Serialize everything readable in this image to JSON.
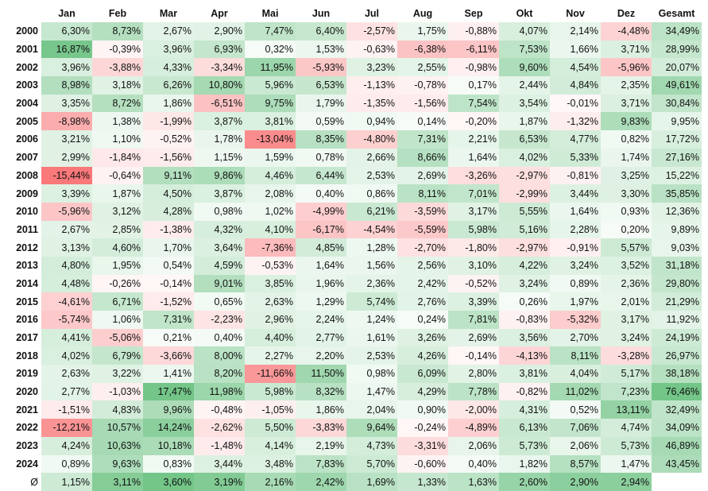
{
  "chart_data": {
    "type": "table",
    "columns": [
      "Jan",
      "Feb",
      "Mar",
      "Apr",
      "Mai",
      "Jun",
      "Jul",
      "Aug",
      "Sep",
      "Okt",
      "Nov",
      "Dez",
      "Gesamt"
    ],
    "rows": [
      {
        "label": "2000",
        "values": [
          "6,30%",
          "8,73%",
          "2,67%",
          "2,90%",
          "7,47%",
          "6,40%",
          "-2,57%",
          "1,75%",
          "-0,88%",
          "4,07%",
          "2,14%",
          "-4,48%",
          "34,49%"
        ]
      },
      {
        "label": "2001",
        "values": [
          "16,87%",
          "-0,39%",
          "3,96%",
          "6,93%",
          "0,32%",
          "1,53%",
          "-0,63%",
          "-6,38%",
          "-6,11%",
          "7,53%",
          "1,66%",
          "3,71%",
          "28,99%"
        ]
      },
      {
        "label": "2002",
        "values": [
          "3,96%",
          "-3,88%",
          "4,33%",
          "-3,34%",
          "11,95%",
          "-5,93%",
          "3,23%",
          "2,55%",
          "-0,98%",
          "9,60%",
          "4,54%",
          "-5,96%",
          "20,07%"
        ]
      },
      {
        "label": "2003",
        "values": [
          "8,98%",
          "3,18%",
          "6,26%",
          "10,80%",
          "5,96%",
          "6,53%",
          "-1,13%",
          "-0,78%",
          "0,17%",
          "2,44%",
          "4,84%",
          "2,35%",
          "49,61%"
        ]
      },
      {
        "label": "2004",
        "values": [
          "3,35%",
          "8,72%",
          "1,86%",
          "-6,51%",
          "9,75%",
          "1,79%",
          "-1,35%",
          "-1,56%",
          "7,54%",
          "3,54%",
          "-0,01%",
          "3,71%",
          "30,84%"
        ]
      },
      {
        "label": "2005",
        "values": [
          "-8,98%",
          "1,38%",
          "-1,99%",
          "3,87%",
          "3,81%",
          "0,59%",
          "0,94%",
          "0,14%",
          "-0,20%",
          "1,87%",
          "-1,32%",
          "9,83%",
          "9,95%"
        ]
      },
      {
        "label": "2006",
        "values": [
          "3,21%",
          "1,10%",
          "-0,52%",
          "1,78%",
          "-13,04%",
          "8,35%",
          "-4,80%",
          "7,31%",
          "2,21%",
          "6,53%",
          "4,77%",
          "0,82%",
          "17,72%"
        ]
      },
      {
        "label": "2007",
        "values": [
          "2,99%",
          "-1,84%",
          "-1,56%",
          "1,15%",
          "1,59%",
          "0,78%",
          "2,66%",
          "8,66%",
          "1,64%",
          "4,02%",
          "5,33%",
          "1,74%",
          "27,16%"
        ]
      },
      {
        "label": "2008",
        "values": [
          "-15,44%",
          "-0,64%",
          "9,11%",
          "9,86%",
          "4,46%",
          "6,44%",
          "2,53%",
          "2,69%",
          "-3,26%",
          "-2,97%",
          "-0,81%",
          "3,25%",
          "15,22%"
        ]
      },
      {
        "label": "2009",
        "values": [
          "3,39%",
          "1,87%",
          "4,50%",
          "3,87%",
          "2,08%",
          "0,40%",
          "0,86%",
          "8,11%",
          "7,01%",
          "-2,99%",
          "3,44%",
          "3,30%",
          "35,85%"
        ]
      },
      {
        "label": "2010",
        "values": [
          "-5,96%",
          "3,12%",
          "4,28%",
          "0,98%",
          "1,02%",
          "-4,99%",
          "6,21%",
          "-3,59%",
          "3,17%",
          "5,55%",
          "1,64%",
          "0,93%",
          "12,36%"
        ]
      },
      {
        "label": "2011",
        "values": [
          "2,67%",
          "2,85%",
          "-1,38%",
          "4,32%",
          "4,10%",
          "-6,17%",
          "-4,54%",
          "-5,59%",
          "5,98%",
          "5,16%",
          "2,28%",
          "0,20%",
          "9,89%"
        ]
      },
      {
        "label": "2012",
        "values": [
          "3,13%",
          "4,60%",
          "1,70%",
          "3,64%",
          "-7,36%",
          "4,85%",
          "1,28%",
          "-2,70%",
          "-1,80%",
          "-2,97%",
          "-0,91%",
          "5,57%",
          "9,03%"
        ]
      },
      {
        "label": "2013",
        "values": [
          "4,80%",
          "1,95%",
          "0,54%",
          "4,59%",
          "-0,53%",
          "1,64%",
          "1,56%",
          "2,56%",
          "3,10%",
          "4,22%",
          "3,24%",
          "3,52%",
          "31,18%"
        ]
      },
      {
        "label": "2014",
        "values": [
          "4,48%",
          "-0,26%",
          "-0,14%",
          "9,01%",
          "3,85%",
          "1,96%",
          "2,36%",
          "2,42%",
          "-0,52%",
          "3,24%",
          "0,89%",
          "2,36%",
          "29,80%"
        ]
      },
      {
        "label": "2015",
        "values": [
          "-4,61%",
          "6,71%",
          "-1,52%",
          "0,65%",
          "2,63%",
          "1,29%",
          "5,74%",
          "2,76%",
          "3,39%",
          "0,26%",
          "1,97%",
          "2,01%",
          "21,29%"
        ]
      },
      {
        "label": "2016",
        "values": [
          "-5,74%",
          "1,06%",
          "7,31%",
          "-2,23%",
          "2,96%",
          "2,24%",
          "1,24%",
          "0,24%",
          "7,81%",
          "-0,83%",
          "-5,32%",
          "3,17%",
          "11,92%"
        ]
      },
      {
        "label": "2017",
        "values": [
          "4,41%",
          "-5,06%",
          "0,21%",
          "0,40%",
          "4,40%",
          "2,77%",
          "1,61%",
          "3,26%",
          "2,69%",
          "3,56%",
          "2,70%",
          "3,24%",
          "24,19%"
        ]
      },
      {
        "label": "2018",
        "values": [
          "4,02%",
          "6,79%",
          "-3,66%",
          "8,00%",
          "2,27%",
          "2,20%",
          "2,53%",
          "4,26%",
          "-0,14%",
          "-4,13%",
          "8,11%",
          "-3,28%",
          "26,97%"
        ]
      },
      {
        "label": "2019",
        "values": [
          "2,63%",
          "3,22%",
          "1,41%",
          "8,20%",
          "-11,66%",
          "11,50%",
          "0,98%",
          "6,09%",
          "2,80%",
          "3,81%",
          "4,04%",
          "5,17%",
          "38,18%"
        ]
      },
      {
        "label": "2020",
        "values": [
          "2,77%",
          "-1,03%",
          "17,47%",
          "11,98%",
          "5,98%",
          "8,32%",
          "1,47%",
          "4,29%",
          "7,78%",
          "-0,82%",
          "11,02%",
          "7,23%",
          "76,46%"
        ]
      },
      {
        "label": "2021",
        "values": [
          "-1,51%",
          "4,83%",
          "9,96%",
          "-0,48%",
          "-1,05%",
          "1,86%",
          "2,04%",
          "0,90%",
          "-2,00%",
          "4,31%",
          "0,52%",
          "13,11%",
          "32,49%"
        ]
      },
      {
        "label": "2022",
        "values": [
          "-12,21%",
          "10,57%",
          "14,24%",
          "-2,62%",
          "5,50%",
          "-3,83%",
          "9,64%",
          "-0,24%",
          "-4,89%",
          "6,13%",
          "7,06%",
          "4,74%",
          "34,09%"
        ]
      },
      {
        "label": "2023",
        "values": [
          "4,24%",
          "10,63%",
          "10,18%",
          "-1,48%",
          "4,14%",
          "2,19%",
          "4,73%",
          "-3,31%",
          "2,06%",
          "5,73%",
          "2,06%",
          "5,73%",
          "46,89%"
        ]
      },
      {
        "label": "2024",
        "values": [
          "0,89%",
          "9,63%",
          "0,83%",
          "3,44%",
          "3,48%",
          "7,83%",
          "5,70%",
          "-0,60%",
          "0,40%",
          "1,82%",
          "8,57%",
          "1,47%",
          "43,45%"
        ]
      }
    ],
    "average_row": {
      "label": "Ø",
      "values": [
        "1,15%",
        "3,11%",
        "3,60%",
        "3,19%",
        "2,16%",
        "2,42%",
        "1,69%",
        "1,33%",
        "1,63%",
        "2,60%",
        "2,90%",
        "2,94%",
        ""
      ]
    },
    "colors": {
      "positive": "#63be7b",
      "negative": "#f8696b",
      "neutral": "#ffffff"
    }
  }
}
